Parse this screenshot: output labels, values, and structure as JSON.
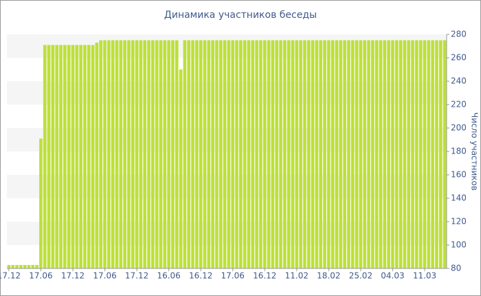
{
  "chart_data": {
    "type": "bar",
    "title": "Динамика участников беседы",
    "y_label": "Число участников",
    "categories": [
      "17.12",
      null,
      null,
      null,
      null,
      null,
      null,
      null,
      "17.06",
      null,
      null,
      null,
      null,
      null,
      null,
      null,
      "17.12",
      null,
      null,
      null,
      null,
      null,
      null,
      null,
      "17.06",
      null,
      null,
      null,
      null,
      null,
      null,
      null,
      "17.12",
      null,
      null,
      null,
      null,
      null,
      null,
      null,
      "16.06",
      null,
      null,
      null,
      null,
      null,
      null,
      null,
      "16.12",
      null,
      null,
      null,
      null,
      null,
      null,
      null,
      "17.06",
      null,
      null,
      null,
      null,
      null,
      null,
      null,
      "16.12",
      null,
      null,
      null,
      null,
      null,
      null,
      null,
      "11.02",
      null,
      null,
      null,
      null,
      null,
      null,
      null,
      "18.02",
      null,
      null,
      null,
      null,
      null,
      null,
      null,
      "25.02",
      null,
      null,
      null,
      null,
      null,
      null,
      null,
      "04.03",
      null,
      null,
      null,
      null,
      null,
      null,
      null,
      "11.03",
      null,
      null,
      null,
      null,
      null
    ],
    "values": [
      83,
      83,
      83,
      83,
      83,
      83,
      83,
      83,
      191,
      271,
      271,
      271,
      271,
      271,
      271,
      271,
      271,
      271,
      271,
      271,
      271,
      271,
      273,
      275,
      275,
      275,
      275,
      275,
      275,
      275,
      275,
      275,
      275,
      275,
      275,
      275,
      275,
      275,
      275,
      275,
      275,
      275,
      275,
      250,
      275,
      275,
      275,
      275,
      275,
      275,
      275,
      275,
      275,
      275,
      275,
      275,
      275,
      275,
      275,
      275,
      275,
      275,
      275,
      275,
      275,
      275,
      275,
      275,
      275,
      275,
      275,
      275,
      275,
      275,
      275,
      275,
      275,
      275,
      275,
      275,
      275,
      275,
      275,
      275,
      275,
      275,
      275,
      275,
      275,
      275,
      275,
      275,
      275,
      275,
      275,
      275,
      275,
      275,
      275,
      275,
      275,
      275,
      275,
      275,
      275,
      275,
      275,
      275,
      275,
      275
    ],
    "color": "#bde03a",
    "ylim": [
      80,
      280
    ],
    "yticks": [
      80,
      100,
      120,
      140,
      160,
      180,
      200,
      220,
      240,
      260,
      280
    ],
    "y_axis_side": "right"
  }
}
